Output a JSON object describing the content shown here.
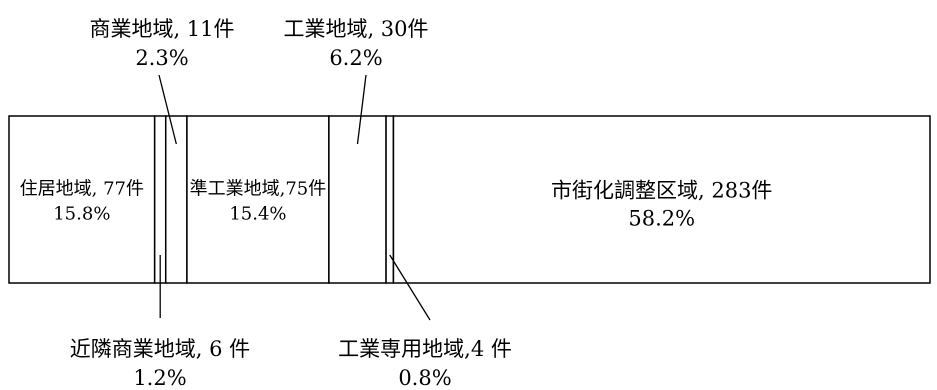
{
  "chart_data": {
    "type": "bar",
    "orientation": "horizontal",
    "stacked": true,
    "title": "",
    "xlabel": "",
    "ylabel": "",
    "categories": [
      "住居地域",
      "近隣商業地域",
      "商業地域",
      "準工業地域",
      "工業地域",
      "工業専用地域",
      "市街化調整区域"
    ],
    "counts": [
      77,
      6,
      11,
      75,
      30,
      4,
      283
    ],
    "count_labels": [
      "77件",
      "6 件",
      "11件",
      "75件",
      "30件",
      "4 件",
      "283件"
    ],
    "values": [
      15.8,
      1.2,
      2.3,
      15.4,
      6.2,
      0.8,
      58.2
    ],
    "value_labels": [
      "15.8%",
      "1.2%",
      "2.3%",
      "15.4%",
      "6.2%",
      "0.8%",
      "58.2%"
    ],
    "separators": [
      ", ",
      ", ",
      ", ",
      ",",
      ", ",
      ",",
      ", "
    ],
    "label_placement": [
      "inside",
      "below",
      "above",
      "inside",
      "above",
      "below",
      "inside"
    ]
  }
}
